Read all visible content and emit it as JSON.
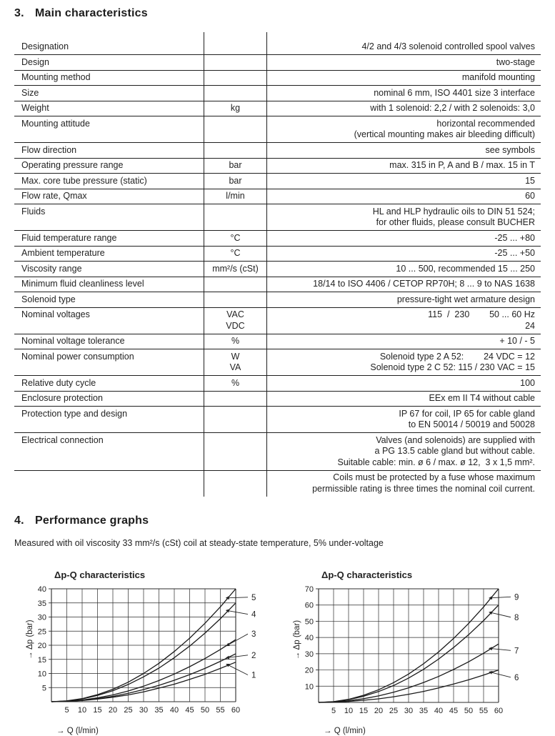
{
  "section3": {
    "number": "3.",
    "title": "Main characteristics"
  },
  "table": {
    "rows": [
      {
        "label": "Designation",
        "unit": "",
        "value": "4/2 and 4/3 solenoid controlled spool valves"
      },
      {
        "label": "Design",
        "unit": "",
        "value": "two-stage"
      },
      {
        "label": "Mounting method",
        "unit": "",
        "value": "manifold mounting"
      },
      {
        "label": "Size",
        "unit": "",
        "value": "nominal 6 mm, ISO 4401 size 3 interface"
      },
      {
        "label": "Weight",
        "unit": "kg",
        "value": "with 1 solenoid: 2,2 / with 2 solenoids: 3,0"
      },
      {
        "label": "Mounting attitude",
        "unit": "",
        "value": "horizontal recommended\n(vertical mounting makes air bleeding difficult)"
      },
      {
        "label": "Flow direction",
        "unit": "",
        "value": "see symbols"
      },
      {
        "label": "Operating pressure range",
        "unit": "bar",
        "value": "max. 315 in P, A and B / max. 15 in T"
      },
      {
        "label": "Max. core tube pressure (static)",
        "unit": "bar",
        "value": "15"
      },
      {
        "label": "Flow rate, Qmax",
        "unit": "l/min",
        "value": "60"
      },
      {
        "label": "Fluids",
        "unit": "",
        "value": "HL and HLP hydraulic oils to DIN 51 524;\nfor other fluids, please consult BUCHER"
      },
      {
        "label": "Fluid temperature range",
        "unit": "°C",
        "value": "-25 ... +80"
      },
      {
        "label": "Ambient temperature",
        "unit": "°C",
        "value": "-25 ... +50"
      },
      {
        "label": "Viscosity range",
        "unit": "mm²/s (cSt)",
        "value": "10 ... 500, recommended 15 ... 250"
      },
      {
        "label": "Minimum fluid cleanliness level",
        "unit": "",
        "value": "18/14 to ISO 4406 / CETOP RP70H; 8 ... 9 to NAS 1638"
      },
      {
        "label": "Solenoid type",
        "unit": "",
        "value": "pressure-tight wet armature design"
      },
      {
        "label": "Nominal voltages",
        "unit": "VAC\nVDC",
        "value": "115  /  230        50 ... 60 Hz\n24"
      },
      {
        "label": "Nominal voltage tolerance",
        "unit": "%",
        "value": "+ 10 / - 5"
      },
      {
        "label": "Nominal power consumption",
        "unit": "W\nVA",
        "value": "Solenoid type 2 A 52:        24 VDC = 12\nSolenoid type 2 C 52: 115 / 230 VAC = 15"
      },
      {
        "label": "Relative duty cycle",
        "unit": "%",
        "value": "100"
      },
      {
        "label": "Enclosure protection",
        "unit": "",
        "value": "EEx em II T4 without cable"
      },
      {
        "label": "Protection type and design",
        "unit": "",
        "value": "IP 67 for coil, IP 65 for cable gland\nto EN 50014 / 50019 and 50028"
      },
      {
        "label": "Electrical connection",
        "unit": "",
        "value": "Valves (and solenoids) are supplied with\na PG 13.5 cable gland but without cable.\nSuitable cable: min. ø 6 / max. ø 12,  3 x 1,5 mm²."
      },
      {
        "label": "",
        "unit": "",
        "value": "Coils must be protected by a fuse whose maximum\npermissible rating is three times the nominal coil current."
      }
    ]
  },
  "section4": {
    "number": "4.",
    "title": "Performance graphs"
  },
  "note": "Measured with oil viscosity 33 mm²/s (cSt) coil at steady-state temperature, 5% under-voltage",
  "chart_data": [
    {
      "type": "line",
      "title": "Δp-Q characteristics",
      "xlabel": "→ Q (l/min)",
      "ylabel": "→ Δp (bar)",
      "xlim": [
        0,
        60
      ],
      "ylim": [
        0,
        40
      ],
      "xtick_step": 5,
      "ytick_step": 5,
      "grid": true,
      "legend_position": "right-leader-labels",
      "x": [
        0,
        5,
        10,
        15,
        20,
        25,
        30,
        35,
        40,
        45,
        50,
        55,
        60
      ],
      "series": [
        {
          "name": "1",
          "values": [
            0,
            0.1,
            0.4,
            0.9,
            1.6,
            2.4,
            3.5,
            4.8,
            6.2,
            7.9,
            9.7,
            11.8,
            14
          ],
          "label_y": 9.5
        },
        {
          "name": "2",
          "values": [
            0,
            0.1,
            0.5,
            1.1,
            1.9,
            3.0,
            4.3,
            5.8,
            7.6,
            9.6,
            11.8,
            14.3,
            17
          ],
          "label_y": 16.5
        },
        {
          "name": "3",
          "values": [
            0,
            0.2,
            0.6,
            1.4,
            2.4,
            3.8,
            5.5,
            7.5,
            9.8,
            12.4,
            15.3,
            18.5,
            22
          ],
          "label_y": 24
        },
        {
          "name": "4",
          "values": [
            0,
            0.2,
            1.0,
            2.2,
            3.9,
            6.1,
            8.8,
            11.9,
            15.6,
            19.7,
            24.3,
            29.4,
            35
          ],
          "label_y": 31
        },
        {
          "name": "5",
          "values": [
            0,
            0.3,
            1.1,
            2.5,
            4.4,
            6.9,
            10.0,
            13.6,
            17.8,
            22.5,
            27.8,
            33.6,
            40
          ],
          "label_y": 37
        }
      ]
    },
    {
      "type": "line",
      "title": "Δp-Q characteristics",
      "xlabel": "→ Q (l/min)",
      "ylabel": "→ Δp (bar)",
      "xlim": [
        0,
        60
      ],
      "ylim": [
        0,
        70
      ],
      "xtick_step": 5,
      "ytick_step": 10,
      "grid": true,
      "legend_position": "right-leader-labels",
      "x": [
        0,
        5,
        10,
        15,
        20,
        25,
        30,
        35,
        40,
        45,
        50,
        55,
        60
      ],
      "series": [
        {
          "name": "6",
          "values": [
            0,
            0.1,
            0.6,
            1.3,
            2.2,
            3.5,
            5.0,
            6.8,
            8.9,
            11.3,
            13.9,
            16.8,
            20
          ],
          "label_y": 15.5
        },
        {
          "name": "7",
          "values": [
            0,
            0.3,
            1.0,
            2.3,
            4.0,
            6.3,
            9.0,
            12.3,
            16.0,
            20.3,
            25.0,
            30.3,
            36
          ],
          "label_y": 32
        },
        {
          "name": "8",
          "values": [
            0,
            0.4,
            1.7,
            3.8,
            6.7,
            10.4,
            15.0,
            20.4,
            26.7,
            33.8,
            41.7,
            50.4,
            60
          ],
          "label_y": 52.5
        },
        {
          "name": "9",
          "values": [
            0,
            0.5,
            1.9,
            4.4,
            7.8,
            12.2,
            17.5,
            23.8,
            31.1,
            39.4,
            48.6,
            58.8,
            70
          ],
          "label_y": 65
        }
      ]
    }
  ]
}
